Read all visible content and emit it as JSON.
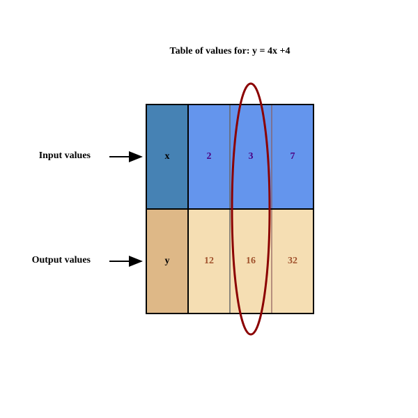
{
  "title": "Table of values for: y = 4x +4",
  "rows": [
    {
      "label": "Input values",
      "header": "x",
      "values": [
        "2",
        "3",
        "7"
      ]
    },
    {
      "label": "Output values",
      "header": "y",
      "values": [
        "12",
        "16",
        "32"
      ]
    }
  ],
  "highlighted_column": 1,
  "colors": {
    "input_header": "#4682b4",
    "input_cells": "#6495ed",
    "input_text": "#4b0082",
    "output_header": "#deb887",
    "output_cells": "#f5deb3",
    "output_text": "#a0522d",
    "highlight": "#8b0000"
  }
}
